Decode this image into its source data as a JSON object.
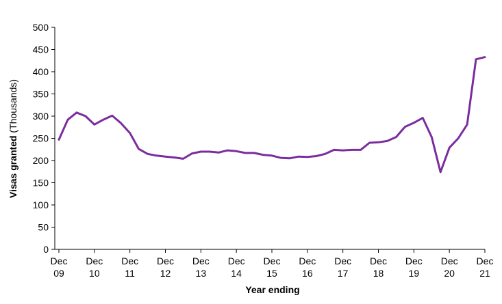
{
  "chart_data": {
    "type": "line",
    "xlabel": "Year ending",
    "ylabel_bold": "Visas granted",
    "ylabel_rest": " (Thousands)",
    "ylim": [
      0,
      500
    ],
    "yticks": [
      0,
      50,
      100,
      150,
      200,
      250,
      300,
      350,
      400,
      450,
      500
    ],
    "grid": false,
    "legend": "none",
    "line_color": "#7b2c9e",
    "x_tick_labels": [
      {
        "top": "Dec",
        "bottom": "09"
      },
      {
        "top": "Dec",
        "bottom": "10"
      },
      {
        "top": "Dec",
        "bottom": "11"
      },
      {
        "top": "Dec",
        "bottom": "12"
      },
      {
        "top": "Dec",
        "bottom": "13"
      },
      {
        "top": "Dec",
        "bottom": "14"
      },
      {
        "top": "Dec",
        "bottom": "15"
      },
      {
        "top": "Dec",
        "bottom": "16"
      },
      {
        "top": "Dec",
        "bottom": "17"
      },
      {
        "top": "Dec",
        "bottom": "18"
      },
      {
        "top": "Dec",
        "bottom": "19"
      },
      {
        "top": "Dec",
        "bottom": "20"
      },
      {
        "top": "Dec",
        "bottom": "21"
      }
    ],
    "x": [
      "Dec 09",
      "Mar 10",
      "Jun 10",
      "Sep 10",
      "Dec 10",
      "Mar 11",
      "Jun 11",
      "Sep 11",
      "Dec 11",
      "Mar 12",
      "Jun 12",
      "Sep 12",
      "Dec 12",
      "Mar 13",
      "Jun 13",
      "Sep 13",
      "Dec 13",
      "Mar 14",
      "Jun 14",
      "Sep 14",
      "Dec 14",
      "Mar 15",
      "Jun 15",
      "Sep 15",
      "Dec 15",
      "Mar 16",
      "Jun 16",
      "Sep 16",
      "Dec 16",
      "Mar 17",
      "Jun 17",
      "Sep 17",
      "Dec 17",
      "Mar 18",
      "Jun 18",
      "Sep 18",
      "Dec 18",
      "Mar 19",
      "Jun 19",
      "Sep 19",
      "Dec 19",
      "Mar 20",
      "Jun 20",
      "Sep 20",
      "Dec 20",
      "Mar 21",
      "Jun 21",
      "Sep 21",
      "Dec 21"
    ],
    "values": [
      247,
      292,
      308,
      300,
      281,
      292,
      301,
      284,
      262,
      226,
      215,
      211,
      209,
      207,
      204,
      216,
      220,
      220,
      218,
      223,
      221,
      217,
      217,
      213,
      211,
      206,
      205,
      209,
      208,
      210,
      215,
      224,
      223,
      224,
      224,
      240,
      241,
      244,
      253,
      276,
      285,
      296,
      253,
      174,
      229,
      250,
      281,
      428,
      433
    ]
  }
}
